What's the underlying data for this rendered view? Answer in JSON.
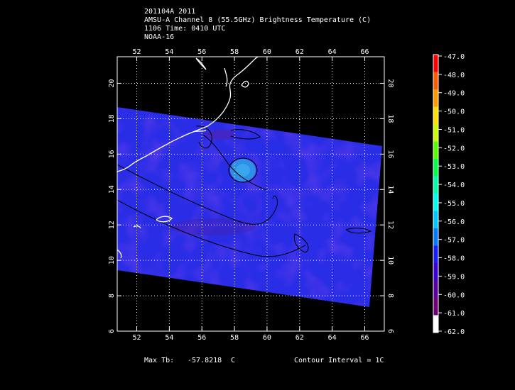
{
  "header": {
    "line1": "201104A 2011",
    "line2": "AMSU-A Channel 8 (55.5GHz) Brightness Temperature (C)",
    "line3": "1106 Time: 0410 UTC",
    "line4": "NOAA-16"
  },
  "map": {
    "lon_range": [
      50.8,
      67.2
    ],
    "lat_range": [
      6,
      21.5
    ],
    "lon_ticks": [
      "52",
      "54",
      "56",
      "58",
      "60",
      "62",
      "64",
      "66"
    ],
    "lat_ticks": [
      "6",
      "8",
      "10",
      "12",
      "14",
      "16",
      "18",
      "20"
    ],
    "swath_field_color": "#2a2de6",
    "coastline_color": "#ffffff",
    "contour_color": "#000000",
    "grid": "dotted"
  },
  "colorbar": {
    "labels": [
      "-47.0",
      "-48.0",
      "-49.0",
      "-50.0",
      "-51.0",
      "-52.0",
      "-53.0",
      "-54.0",
      "-55.0",
      "-56.0",
      "-57.0",
      "-58.0",
      "-59.0",
      "-60.0",
      "-61.0",
      "-62.0"
    ],
    "colors": [
      "#ff0000",
      "#ff5a00",
      "#ff9900",
      "#ffdd00",
      "#c8ff00",
      "#55ff00",
      "#00ff44",
      "#00ffaa",
      "#00ffee",
      "#00c8ff",
      "#0078ff",
      "#1a1aff",
      "#3c00d2",
      "#5a00a0",
      "#6e0078",
      "#ffffff"
    ]
  },
  "footer": {
    "max_label": "Max Tb:",
    "max_value": "-57.8218",
    "unit": "C",
    "contour": "Contour Interval = 1C"
  }
}
